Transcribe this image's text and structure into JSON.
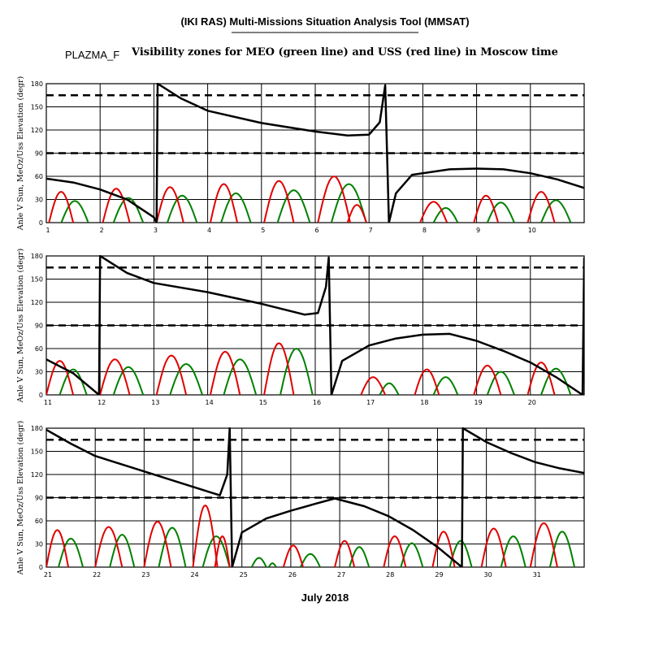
{
  "header": {
    "tool_title": "(IKI RAS) Multi-Missions Situation Analysis Tool (MMSAT)",
    "mission": "PLAZMA_F",
    "subtitle": "Visibility zones for MEO (green line) and USS (red line) in Moscow time",
    "xlabel": "July 2018"
  },
  "colors": {
    "meo": "#008000",
    "uss": "#e00000",
    "sun": "#000000",
    "grid": "#000000"
  },
  "chart_data": [
    {
      "type": "line",
      "xlim": [
        1,
        11
      ],
      "ylim": [
        0,
        180
      ],
      "x_ticks": [
        "1",
        "2",
        "3",
        "4",
        "5",
        "6",
        "7",
        "8",
        "9",
        "10"
      ],
      "ylabel": "Anle V Sun, MeOz/Uss Elevation (degr)",
      "y_ticks": [
        "0",
        "30",
        "60",
        "90",
        "120",
        "150",
        "180"
      ],
      "reference_lines": [
        90,
        165
      ],
      "sun_angle": [
        [
          1,
          57
        ],
        [
          1.5,
          52
        ],
        [
          2,
          43
        ],
        [
          2.5,
          30
        ],
        [
          3,
          7
        ],
        [
          3.05,
          0
        ],
        [
          3.07,
          180
        ],
        [
          3.5,
          161
        ],
        [
          4,
          145
        ],
        [
          5,
          129
        ],
        [
          6,
          118
        ],
        [
          6.6,
          113
        ],
        [
          7,
          114
        ],
        [
          7.2,
          130
        ],
        [
          7.3,
          178
        ],
        [
          7.37,
          0
        ],
        [
          7.5,
          38
        ],
        [
          7.8,
          62
        ],
        [
          8.5,
          69
        ],
        [
          9,
          70
        ],
        [
          9.5,
          69
        ],
        [
          10,
          64
        ],
        [
          10.5,
          56
        ],
        [
          11,
          45
        ]
      ],
      "uss_passes": [
        [
          1.05,
          1.5,
          40
        ],
        [
          2.05,
          2.55,
          44
        ],
        [
          3.05,
          3.55,
          46
        ],
        [
          4.05,
          4.55,
          50
        ],
        [
          5.05,
          5.6,
          54
        ],
        [
          6.05,
          6.65,
          60
        ],
        [
          6.6,
          6.95,
          23
        ],
        [
          7.95,
          8.45,
          27
        ],
        [
          8.95,
          9.4,
          35
        ],
        [
          9.95,
          10.45,
          40
        ]
      ],
      "meo_passes": [
        [
          1.28,
          1.78,
          28
        ],
        [
          2.25,
          2.8,
          32
        ],
        [
          3.25,
          3.8,
          35
        ],
        [
          4.25,
          4.8,
          38
        ],
        [
          5.3,
          5.9,
          42
        ],
        [
          6.3,
          6.95,
          50
        ],
        [
          8.2,
          8.65,
          19
        ],
        [
          9.2,
          9.7,
          26
        ],
        [
          10.2,
          10.75,
          29
        ]
      ]
    },
    {
      "type": "line",
      "xlim": [
        11,
        21
      ],
      "ylim": [
        0,
        180
      ],
      "x_ticks": [
        "11",
        "12",
        "13",
        "14",
        "15",
        "16",
        "17",
        "18",
        "19",
        "20"
      ],
      "ylabel": "Anle V Sun, MeOz/Uss Elevation (degr)",
      "y_ticks": [
        "0",
        "30",
        "60",
        "90",
        "120",
        "150",
        "180"
      ],
      "reference_lines": [
        90,
        165
      ],
      "sun_angle": [
        [
          11,
          46
        ],
        [
          11.5,
          28
        ],
        [
          11.98,
          0
        ],
        [
          12.0,
          180
        ],
        [
          12.5,
          158
        ],
        [
          13,
          145
        ],
        [
          14,
          133
        ],
        [
          15,
          118
        ],
        [
          15.8,
          104
        ],
        [
          16.05,
          106
        ],
        [
          16.2,
          140
        ],
        [
          16.25,
          178
        ],
        [
          16.3,
          0
        ],
        [
          16.5,
          44
        ],
        [
          17,
          64
        ],
        [
          17.5,
          73
        ],
        [
          18,
          78
        ],
        [
          18.5,
          79
        ],
        [
          19,
          70
        ],
        [
          19.5,
          57
        ],
        [
          20,
          42
        ],
        [
          20.5,
          22
        ],
        [
          20.97,
          0
        ],
        [
          21,
          178
        ]
      ],
      "uss_passes": [
        [
          11.0,
          11.5,
          44
        ],
        [
          12.0,
          12.55,
          46
        ],
        [
          13.05,
          13.6,
          51
        ],
        [
          14.05,
          14.6,
          56
        ],
        [
          15.05,
          15.6,
          67
        ],
        [
          16.85,
          17.3,
          23
        ],
        [
          17.85,
          18.3,
          33
        ],
        [
          18.95,
          19.45,
          38
        ],
        [
          19.95,
          20.45,
          42
        ]
      ],
      "meo_passes": [
        [
          11.25,
          11.75,
          33
        ],
        [
          12.25,
          12.8,
          36
        ],
        [
          13.3,
          13.9,
          40
        ],
        [
          14.3,
          14.9,
          46
        ],
        [
          15.35,
          15.95,
          60
        ],
        [
          17.2,
          17.55,
          15
        ],
        [
          18.2,
          18.65,
          23
        ],
        [
          19.2,
          19.7,
          30
        ],
        [
          20.2,
          20.75,
          34
        ]
      ]
    },
    {
      "type": "line",
      "xlim": [
        21,
        32
      ],
      "ylim": [
        0,
        180
      ],
      "x_ticks": [
        "21",
        "22",
        "23",
        "24",
        "25",
        "26",
        "27",
        "28",
        "29",
        "30",
        "31"
      ],
      "ylabel": "Anle V Sun, MeOz/Uss Elevation (degr)",
      "y_ticks": [
        "0",
        "30",
        "60",
        "90",
        "120",
        "150",
        "180"
      ],
      "reference_lines": [
        90,
        165
      ],
      "sun_angle": [
        [
          21,
          178
        ],
        [
          21.5,
          160
        ],
        [
          22,
          144
        ],
        [
          23,
          124
        ],
        [
          24,
          104
        ],
        [
          24.55,
          93
        ],
        [
          24.7,
          120
        ],
        [
          24.75,
          180
        ],
        [
          24.8,
          0
        ],
        [
          25,
          45
        ],
        [
          25.5,
          63
        ],
        [
          26,
          73
        ],
        [
          26.5,
          82
        ],
        [
          26.9,
          89
        ],
        [
          27.5,
          79
        ],
        [
          28,
          66
        ],
        [
          28.5,
          48
        ],
        [
          29,
          26
        ],
        [
          29.5,
          0
        ],
        [
          29.52,
          180
        ],
        [
          30,
          162
        ],
        [
          30.5,
          148
        ],
        [
          31,
          136
        ],
        [
          31.5,
          128
        ],
        [
          32,
          122
        ]
      ],
      "uss_passes": [
        [
          21.0,
          21.45,
          48
        ],
        [
          22.0,
          22.55,
          52
        ],
        [
          23.0,
          23.55,
          59
        ],
        [
          24.0,
          24.5,
          80
        ],
        [
          24.45,
          24.75,
          40
        ],
        [
          25.85,
          26.25,
          28
        ],
        [
          26.9,
          27.3,
          34
        ],
        [
          27.9,
          28.35,
          40
        ],
        [
          28.9,
          29.35,
          46
        ],
        [
          29.9,
          30.4,
          50
        ],
        [
          30.9,
          31.45,
          57
        ]
      ],
      "meo_passes": [
        [
          21.25,
          21.75,
          37
        ],
        [
          22.3,
          22.8,
          42
        ],
        [
          23.3,
          23.85,
          51
        ],
        [
          24.2,
          24.75,
          40
        ],
        [
          25.2,
          25.5,
          12
        ],
        [
          25.55,
          25.7,
          5
        ],
        [
          26.2,
          26.6,
          17
        ],
        [
          27.2,
          27.6,
          26
        ],
        [
          28.25,
          28.7,
          31
        ],
        [
          29.25,
          29.7,
          34
        ],
        [
          30.3,
          30.8,
          40
        ],
        [
          31.3,
          31.8,
          46
        ]
      ]
    }
  ]
}
